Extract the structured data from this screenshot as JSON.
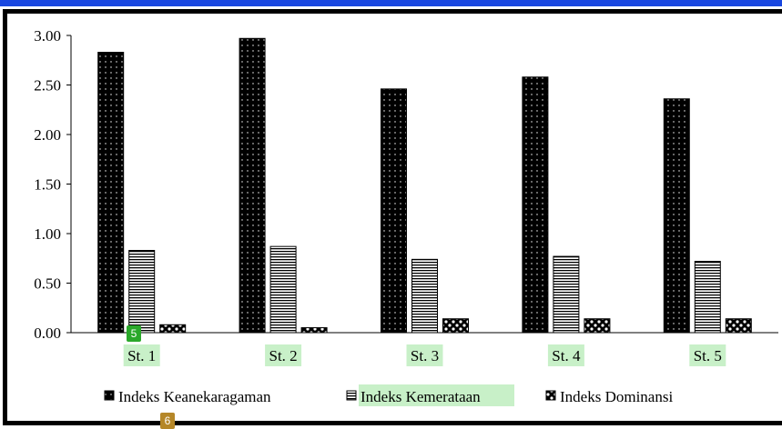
{
  "chart_data": {
    "type": "bar",
    "categories": [
      "St. 1",
      "St. 2",
      "St. 3",
      "St. 4",
      "St. 5"
    ],
    "series": [
      {
        "name": "Indeks Keanekaragaman",
        "values": [
          2.83,
          2.97,
          2.46,
          2.58,
          2.36
        ]
      },
      {
        "name": "Indeks Kemerataan",
        "values": [
          0.83,
          0.87,
          0.74,
          0.77,
          0.72
        ]
      },
      {
        "name": "Indeks Dominansi",
        "values": [
          0.08,
          0.05,
          0.14,
          0.14,
          0.14
        ]
      }
    ],
    "ylim": [
      0,
      3
    ],
    "yticks": [
      "0.00",
      "0.50",
      "1.00",
      "1.50",
      "2.00",
      "2.50",
      "3.00"
    ],
    "legend_position": "bottom",
    "grid": false
  },
  "annotations": {
    "badges": [
      "5",
      "6"
    ],
    "highlight_color": "#c8f0c8"
  }
}
